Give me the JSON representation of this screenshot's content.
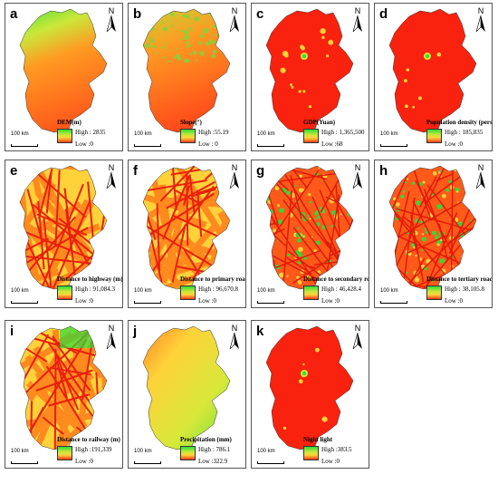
{
  "panels": [
    {
      "letter": "a",
      "title": "DEM(m)",
      "high": "High : 2835",
      "low": "Low :0",
      "scale": "100 km",
      "north": "N",
      "style": "dem"
    },
    {
      "letter": "b",
      "title": "Slope(°)",
      "high": "High :55.19",
      "low": "Low : 0",
      "scale": "100 km",
      "north": "N",
      "style": "slope"
    },
    {
      "letter": "c",
      "title": "GDP(Yuan)",
      "high": "High : 1,365,500",
      "low": "Low :68",
      "scale": "100 km",
      "north": "N",
      "style": "gdp"
    },
    {
      "letter": "d",
      "title": "Population density (person)",
      "high": "High : 185,835",
      "low": "Low :0",
      "scale": "100 km",
      "north": "N",
      "style": "pop"
    },
    {
      "letter": "e",
      "title": "Distance to highway (m)",
      "high": "High : 91,084.3",
      "low": "Low :0",
      "scale": "100 km",
      "north": "N",
      "style": "road"
    },
    {
      "letter": "f",
      "title": "Distance to primary road (m)",
      "high": "High : 96,670.8",
      "low": "Low :0",
      "scale": "100 km",
      "north": "N",
      "style": "road"
    },
    {
      "letter": "g",
      "title": "Distance to secondary road (m)",
      "high": "High : 46,428.4",
      "low": "Low :0",
      "scale": "100 km",
      "north": "N",
      "style": "dense"
    },
    {
      "letter": "h",
      "title": "Distance to tertiary road (m)",
      "high": "High : 38,105.8",
      "low": "Low :0",
      "scale": "100 km",
      "north": "N",
      "style": "dense"
    },
    {
      "letter": "i",
      "title": "Distance to railway (m)",
      "high": "High :191,339",
      "low": "Low :0",
      "scale": "100 km",
      "north": "N",
      "style": "rail"
    },
    {
      "letter": "j",
      "title": "Precipitation (mm)",
      "high": "High : 786.1",
      "low": "Low :322.9",
      "scale": "100 km",
      "north": "N",
      "style": "precip"
    },
    {
      "letter": "k",
      "title": "Night light",
      "high": "High :383.5",
      "low": "Low :0",
      "scale": "100 km",
      "north": "N",
      "style": "night"
    }
  ],
  "colors": {
    "high": "#2ddc3a",
    "mid": "#ffd23a",
    "low": "#ff2a12"
  }
}
